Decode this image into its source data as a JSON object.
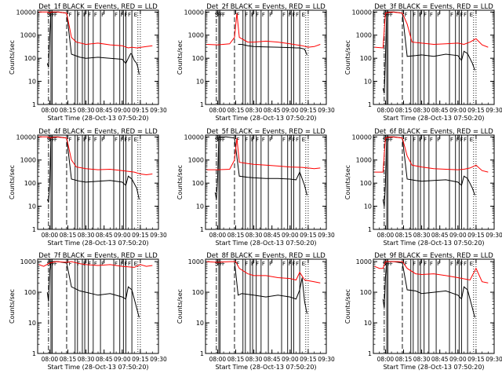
{
  "figure": {
    "ylabel": "Counts/sec",
    "xlabel": "Start Time (28-Oct-13 07:50:20)",
    "ytick_labels": [
      "1",
      "10",
      "100",
      "1000",
      "10000"
    ],
    "xtick_labels": [
      "08:00",
      "08:15",
      "08:30",
      "08:45",
      "09:00",
      "09:15",
      "09:30"
    ],
    "colors": {
      "events": "#000000",
      "lld": "#ff0000"
    }
  },
  "chart_data": [
    {
      "type": "line",
      "title": "Det_1f BLACK = Events, RED = LLD",
      "scale": "log",
      "ylim": [
        1,
        12000
      ],
      "xlim": [
        "07:50",
        "09:30"
      ],
      "markers": [
        "S",
        "F",
        "F",
        "F",
        "F",
        "F",
        "F",
        "F",
        "F",
        "F",
        "F",
        "F",
        "F",
        "F",
        "E"
      ],
      "series": [
        {
          "name": "Events",
          "x": [
            "07:58",
            "07:59",
            "08:00",
            "08:01",
            "08:07",
            "08:14",
            "08:18",
            "08:25",
            "08:30",
            "08:40",
            "08:50",
            "09:00",
            "09:03",
            "09:05",
            "09:07",
            "09:08",
            "09:10",
            "09:12",
            "09:13",
            "09:14"
          ],
          "y": [
            60,
            40,
            900,
            10000,
            10000,
            9000,
            150,
            110,
            100,
            110,
            100,
            90,
            60,
            100,
            160,
            150,
            80,
            60,
            40,
            20
          ]
        },
        {
          "name": "LLD",
          "x": [
            "07:51",
            "07:58",
            "08:00",
            "08:01",
            "08:07",
            "08:14",
            "08:18",
            "08:22",
            "08:30",
            "08:40",
            "08:50",
            "09:00",
            "09:05",
            "09:08",
            "09:12",
            "09:20",
            "09:25"
          ],
          "y": [
            10000,
            10000,
            9000,
            10000,
            10000,
            9000,
            800,
            500,
            400,
            450,
            380,
            350,
            280,
            300,
            280,
            320,
            350
          ]
        }
      ]
    },
    {
      "type": "line",
      "title": "Det_2f BLACK = Events, RED = LLD",
      "scale": "log",
      "ylim": [
        1,
        12000
      ],
      "xlim": [
        "07:50",
        "09:30"
      ],
      "markers": [
        "S",
        "F",
        "F",
        "F",
        "F",
        "F",
        "F",
        "F",
        "F",
        "F",
        "F",
        "F",
        "F",
        "F",
        "E"
      ],
      "series": [
        {
          "name": "Events",
          "x": [
            "08:17",
            "08:20",
            "08:25",
            "08:30",
            "08:40",
            "08:50",
            "09:00",
            "09:05",
            "09:08",
            "09:12",
            "09:14"
          ],
          "y": [
            400,
            400,
            350,
            320,
            310,
            300,
            290,
            280,
            280,
            250,
            140
          ]
        },
        {
          "name": "LLD",
          "x": [
            "07:51",
            "08:00",
            "08:10",
            "08:14",
            "08:16",
            "08:18",
            "08:25",
            "08:30",
            "08:40",
            "08:50",
            "09:00",
            "09:10",
            "09:15",
            "09:20",
            "09:25"
          ],
          "y": [
            400,
            380,
            420,
            800,
            9000,
            800,
            500,
            500,
            550,
            500,
            420,
            350,
            300,
            320,
            400
          ]
        }
      ]
    },
    {
      "type": "line",
      "title": "Det_3f BLACK = Events, RED = LLD",
      "scale": "log",
      "ylim": [
        1,
        12000
      ],
      "xlim": [
        "07:50",
        "09:30"
      ],
      "markers": [
        "S",
        "F",
        "F",
        "F",
        "F",
        "F",
        "F",
        "F",
        "F",
        "F",
        "F",
        "F",
        "F",
        "F",
        "E"
      ],
      "series": [
        {
          "name": "Events",
          "x": [
            "07:58",
            "07:59",
            "08:00",
            "08:01",
            "08:07",
            "08:14",
            "08:18",
            "08:25",
            "08:30",
            "08:40",
            "08:50",
            "09:00",
            "09:03",
            "09:05",
            "09:08",
            "09:12",
            "09:14"
          ],
          "y": [
            5,
            3,
            100,
            10000,
            10000,
            9000,
            120,
            130,
            140,
            120,
            150,
            130,
            80,
            200,
            160,
            60,
            30
          ]
        },
        {
          "name": "LLD",
          "x": [
            "07:51",
            "07:58",
            "08:00",
            "08:05",
            "08:14",
            "08:18",
            "08:22",
            "08:30",
            "08:40",
            "08:50",
            "09:00",
            "09:05",
            "09:10",
            "09:15",
            "09:20",
            "09:25"
          ],
          "y": [
            300,
            280,
            9000,
            10000,
            9000,
            3000,
            500,
            450,
            400,
            420,
            450,
            400,
            500,
            700,
            380,
            300
          ]
        }
      ]
    },
    {
      "type": "line",
      "title": "Det_4f BLACK = Events, RED = LLD",
      "scale": "log",
      "ylim": [
        1,
        12000
      ],
      "xlim": [
        "07:50",
        "09:30"
      ],
      "markers": [
        "S",
        "F",
        "F",
        "F",
        "F",
        "F",
        "F",
        "F",
        "F",
        "F",
        "F",
        "F",
        "F",
        "F",
        "E"
      ],
      "series": [
        {
          "name": "Events",
          "x": [
            "07:58",
            "07:59",
            "08:00",
            "08:01",
            "08:07",
            "08:14",
            "08:18",
            "08:25",
            "08:30",
            "08:40",
            "08:50",
            "09:00",
            "09:03",
            "09:05",
            "09:08",
            "09:12",
            "09:14"
          ],
          "y": [
            20,
            15,
            100,
            10000,
            10000,
            9000,
            150,
            120,
            110,
            120,
            130,
            110,
            80,
            200,
            150,
            60,
            20
          ]
        },
        {
          "name": "LLD",
          "x": [
            "07:51",
            "07:58",
            "08:00",
            "08:05",
            "08:14",
            "08:18",
            "08:22",
            "08:30",
            "08:40",
            "08:50",
            "09:00",
            "09:10",
            "09:15",
            "09:20",
            "09:25"
          ],
          "y": [
            10000,
            10000,
            9000,
            10000,
            9000,
            1000,
            500,
            420,
            380,
            400,
            350,
            300,
            250,
            230,
            250
          ]
        }
      ]
    },
    {
      "type": "line",
      "title": "Det_5f BLACK = Events, RED = LLD",
      "scale": "log",
      "ylim": [
        1,
        12000
      ],
      "xlim": [
        "07:50",
        "09:30"
      ],
      "markers": [
        "S",
        "F",
        "F",
        "F",
        "F",
        "F",
        "F",
        "F",
        "F",
        "F",
        "F",
        "F",
        "F",
        "F",
        "E"
      ],
      "series": [
        {
          "name": "Events",
          "x": [
            "07:58",
            "07:59",
            "08:00",
            "08:01",
            "08:07",
            "08:14",
            "08:18",
            "08:25",
            "08:30",
            "08:40",
            "08:50",
            "09:00",
            "09:05",
            "09:08",
            "09:12",
            "09:14"
          ],
          "y": [
            40,
            20,
            150,
            10000,
            10000,
            9000,
            200,
            180,
            170,
            160,
            160,
            150,
            140,
            300,
            80,
            30
          ]
        },
        {
          "name": "LLD",
          "x": [
            "07:51",
            "08:00",
            "08:10",
            "08:14",
            "08:16",
            "08:18",
            "08:25",
            "08:30",
            "08:40",
            "08:50",
            "09:00",
            "09:10",
            "09:15",
            "09:20",
            "09:25"
          ],
          "y": [
            380,
            380,
            400,
            1000,
            9000,
            800,
            700,
            650,
            600,
            550,
            500,
            480,
            450,
            420,
            450
          ]
        }
      ]
    },
    {
      "type": "line",
      "title": "Det_6f BLACK = Events, RED = LLD",
      "scale": "log",
      "ylim": [
        1,
        12000
      ],
      "xlim": [
        "07:50",
        "09:30"
      ],
      "markers": [
        "S",
        "F",
        "F",
        "F",
        "F",
        "F",
        "F",
        "F",
        "F",
        "F",
        "F",
        "F",
        "F",
        "F",
        "E"
      ],
      "series": [
        {
          "name": "Events",
          "x": [
            "07:58",
            "07:59",
            "08:00",
            "08:01",
            "08:07",
            "08:14",
            "08:18",
            "08:25",
            "08:30",
            "08:40",
            "08:50",
            "09:00",
            "09:03",
            "09:05",
            "09:08",
            "09:12",
            "09:14"
          ],
          "y": [
            20,
            10,
            100,
            10000,
            10000,
            9000,
            150,
            130,
            120,
            130,
            140,
            110,
            80,
            200,
            160,
            60,
            30
          ]
        },
        {
          "name": "LLD",
          "x": [
            "07:51",
            "07:58",
            "08:00",
            "08:05",
            "08:14",
            "08:18",
            "08:22",
            "08:30",
            "08:40",
            "08:50",
            "09:00",
            "09:05",
            "09:10",
            "09:15",
            "09:20",
            "09:25"
          ],
          "y": [
            300,
            300,
            9000,
            10000,
            9000,
            1500,
            600,
            500,
            420,
            400,
            380,
            400,
            450,
            600,
            350,
            300
          ]
        }
      ]
    },
    {
      "type": "line",
      "title": "Det_7f BLACK = Events, RED = LLD",
      "scale": "log",
      "ylim": [
        1,
        1200
      ],
      "xlim": [
        "07:50",
        "09:30"
      ],
      "markers": [
        "S",
        "F",
        "F",
        "F",
        "F",
        "F",
        "F",
        "F",
        "F",
        "F",
        "F",
        "F",
        "F",
        "F",
        "E"
      ],
      "series": [
        {
          "name": "Events",
          "x": [
            "07:58",
            "07:59",
            "08:00",
            "08:01",
            "08:07",
            "08:14",
            "08:18",
            "08:25",
            "08:30",
            "08:40",
            "08:50",
            "09:00",
            "09:03",
            "09:05",
            "09:08",
            "09:12",
            "09:14"
          ],
          "y": [
            100,
            50,
            500,
            1000,
            1000,
            900,
            150,
            110,
            100,
            80,
            90,
            70,
            60,
            150,
            120,
            30,
            15
          ]
        },
        {
          "name": "LLD",
          "x": [
            "07:51",
            "07:55",
            "08:00",
            "08:05",
            "08:14",
            "08:18",
            "08:25",
            "08:30",
            "08:40",
            "08:50",
            "09:00",
            "09:10",
            "09:15",
            "09:20",
            "09:25"
          ],
          "y": [
            800,
            700,
            900,
            1000,
            950,
            1000,
            850,
            800,
            750,
            800,
            700,
            650,
            800,
            700,
            750
          ]
        }
      ]
    },
    {
      "type": "line",
      "title": "Det_8f BLACK = Events, RED = LLD",
      "scale": "log",
      "ylim": [
        1,
        1200
      ],
      "xlim": [
        "07:50",
        "09:30"
      ],
      "markers": [
        "S",
        "F",
        "F",
        "F",
        "F",
        "F",
        "F",
        "F",
        "F",
        "F",
        "F",
        "F",
        "F",
        "F",
        "E"
      ],
      "series": [
        {
          "name": "Events",
          "x": [
            "08:14",
            "08:17",
            "08:20",
            "08:30",
            "08:40",
            "08:50",
            "09:00",
            "09:05",
            "09:08",
            "09:10",
            "09:12",
            "09:14"
          ],
          "y": [
            1000,
            80,
            90,
            80,
            70,
            80,
            70,
            60,
            120,
            300,
            50,
            20
          ]
        },
        {
          "name": "LLD",
          "x": [
            "07:51",
            "08:00",
            "08:10",
            "08:15",
            "08:18",
            "08:25",
            "08:30",
            "08:40",
            "08:50",
            "09:00",
            "09:05",
            "09:08",
            "09:12",
            "09:20",
            "09:25"
          ],
          "y": [
            1000,
            950,
            1000,
            1000,
            600,
            400,
            350,
            350,
            300,
            280,
            250,
            450,
            250,
            220,
            200
          ]
        }
      ]
    },
    {
      "type": "line",
      "title": "Det_9f BLACK = Events, RED = LLD",
      "scale": "log",
      "ylim": [
        1,
        1200
      ],
      "xlim": [
        "07:50",
        "09:30"
      ],
      "markers": [
        "S",
        "F",
        "F",
        "F",
        "F",
        "F",
        "F",
        "F",
        "F",
        "F",
        "F",
        "F",
        "F",
        "F",
        "E"
      ],
      "series": [
        {
          "name": "Events",
          "x": [
            "07:58",
            "07:59",
            "08:00",
            "08:01",
            "08:07",
            "08:14",
            "08:18",
            "08:25",
            "08:30",
            "08:40",
            "08:50",
            "09:00",
            "09:03",
            "09:05",
            "09:08",
            "09:12",
            "09:14"
          ],
          "y": [
            60,
            30,
            300,
            1000,
            1000,
            900,
            120,
            110,
            90,
            100,
            110,
            80,
            60,
            150,
            120,
            30,
            15
          ]
        },
        {
          "name": "LLD",
          "x": [
            "07:51",
            "07:55",
            "07:58",
            "08:00",
            "08:05",
            "08:14",
            "08:18",
            "08:25",
            "08:30",
            "08:40",
            "08:50",
            "09:00",
            "09:10",
            "09:15",
            "09:20",
            "09:25"
          ],
          "y": [
            700,
            600,
            600,
            1000,
            1000,
            1000,
            600,
            400,
            380,
            400,
            350,
            300,
            250,
            600,
            220,
            200
          ]
        }
      ]
    }
  ]
}
